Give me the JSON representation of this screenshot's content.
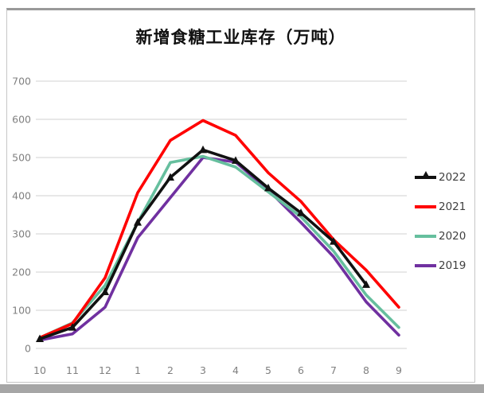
{
  "window": {
    "bottom_strip_color": "#a6a6a6"
  },
  "chart_data": {
    "type": "line",
    "title": "新增食糖工业库存（万吨）",
    "xlabel": "",
    "ylabel": "",
    "x_labels": [
      "10",
      "11",
      "12",
      "1",
      "2",
      "3",
      "4",
      "5",
      "6",
      "7",
      "8",
      "9"
    ],
    "y_ticks": [
      0,
      100,
      200,
      300,
      400,
      500,
      600,
      700
    ],
    "ylim": [
      0,
      700
    ],
    "grid": "horizontal",
    "grid_color": "#d9d9d9",
    "axis_text_color": "#808080",
    "legend_position": "right",
    "series": [
      {
        "name": "2022",
        "color": "#111111",
        "marker": "triangle",
        "values": [
          25,
          55,
          148,
          330,
          448,
          520,
          492,
          420,
          355,
          280,
          167,
          null
        ]
      },
      {
        "name": "2021",
        "color": "#ff0000",
        "marker": "none",
        "values": [
          28,
          65,
          185,
          408,
          545,
          597,
          558,
          460,
          385,
          285,
          205,
          108
        ]
      },
      {
        "name": "2020",
        "color": "#66bf9e",
        "marker": "none",
        "values": [
          28,
          67,
          165,
          330,
          487,
          503,
          475,
          410,
          345,
          255,
          140,
          55
        ]
      },
      {
        "name": "2019",
        "color": "#7030a0",
        "marker": "none",
        "values": [
          22,
          38,
          108,
          290,
          395,
          500,
          488,
          415,
          330,
          240,
          122,
          35
        ]
      }
    ]
  }
}
